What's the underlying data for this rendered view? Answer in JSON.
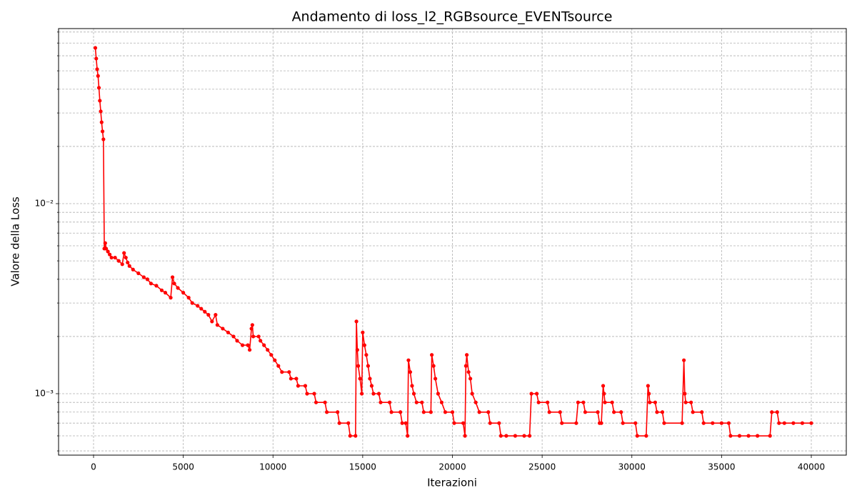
{
  "chart_data": {
    "type": "line",
    "title": "Andamento di loss_l2_RGBsource_EVENTsource",
    "xlabel": "Iterazioni",
    "ylabel": "Valore della Loss",
    "yscale": "log",
    "grid": true,
    "marker": true,
    "xlim": [
      -1950,
      41950
    ],
    "ylim": [
      0.000475,
      0.0834
    ],
    "xticks": [
      0,
      5000,
      10000,
      15000,
      20000,
      25000,
      30000,
      35000,
      40000
    ],
    "yticks": [
      {
        "value": 0.001,
        "label": "10⁻³"
      },
      {
        "value": 0.01,
        "label": "10⁻²"
      }
    ],
    "yminor_ticks": [
      0.0005,
      0.0006,
      0.0007,
      0.0008,
      0.0009,
      0.002,
      0.003,
      0.004,
      0.005,
      0.006,
      0.007,
      0.008,
      0.009,
      0.02,
      0.03,
      0.04,
      0.05,
      0.06,
      0.07,
      0.08
    ],
    "x": [
      100,
      150,
      200,
      250,
      300,
      350,
      400,
      450,
      500,
      550,
      600,
      650,
      700,
      800,
      900,
      1000,
      1200,
      1400,
      1600,
      1700,
      1800,
      1900,
      2000,
      2200,
      2500,
      2800,
      3000,
      3200,
      3500,
      3800,
      4000,
      4300,
      4400,
      4500,
      4700,
      5000,
      5300,
      5500,
      5800,
      6000,
      6200,
      6400,
      6600,
      6800,
      6900,
      7200,
      7500,
      7800,
      8000,
      8300,
      8600,
      8700,
      8800,
      8850,
      8900,
      9200,
      9300,
      9500,
      9700,
      9900,
      10100,
      10300,
      10500,
      10900,
      11000,
      11300,
      11400,
      11800,
      11900,
      12300,
      12400,
      12900,
      13000,
      13600,
      13700,
      14200,
      14300,
      14600,
      14650,
      14700,
      14750,
      14850,
      14950,
      15000,
      15100,
      15200,
      15300,
      15400,
      15500,
      15600,
      15900,
      16000,
      16500,
      16600,
      17100,
      17200,
      17400,
      17500,
      17550,
      17650,
      17750,
      17850,
      18000,
      18300,
      18400,
      18800,
      18850,
      18950,
      19050,
      19200,
      19400,
      19600,
      20000,
      20100,
      20600,
      20700,
      20750,
      20800,
      20900,
      21000,
      21100,
      21300,
      21500,
      22000,
      22100,
      22600,
      22700,
      23000,
      23500,
      24000,
      24300,
      24400,
      24700,
      24800,
      25300,
      25400,
      26000,
      26100,
      26900,
      27000,
      27300,
      27400,
      28100,
      28200,
      28300,
      28400,
      28450,
      28500,
      28900,
      29000,
      29400,
      29500,
      30200,
      30300,
      30800,
      30900,
      30950,
      31000,
      31300,
      31400,
      31700,
      31800,
      32800,
      32900,
      32950,
      33000,
      33300,
      33400,
      33900,
      34000,
      34500,
      35000,
      35400,
      35500,
      36000,
      36500,
      37000,
      37700,
      37800,
      38100,
      38200,
      38500,
      39000,
      39500,
      40000
    ],
    "series": [
      {
        "name": "loss_l2_RGBsource_EVENTsource",
        "color": "#ff0000",
        "values": [
          0.066,
          0.058,
          0.051,
          0.047,
          0.0407,
          0.0348,
          0.0306,
          0.0268,
          0.024,
          0.0218,
          0.0058,
          0.0062,
          0.0058,
          0.0056,
          0.0054,
          0.0052,
          0.0052,
          0.005,
          0.0048,
          0.0055,
          0.0052,
          0.0049,
          0.0047,
          0.0045,
          0.0043,
          0.0041,
          0.004,
          0.0038,
          0.0037,
          0.0035,
          0.0034,
          0.0032,
          0.0041,
          0.0038,
          0.0036,
          0.0034,
          0.0032,
          0.003,
          0.0029,
          0.0028,
          0.0027,
          0.0026,
          0.0024,
          0.0026,
          0.0023,
          0.0022,
          0.0021,
          0.002,
          0.0019,
          0.0018,
          0.0018,
          0.0017,
          0.0022,
          0.0023,
          0.002,
          0.002,
          0.0019,
          0.0018,
          0.0017,
          0.0016,
          0.0015,
          0.0014,
          0.0013,
          0.0013,
          0.0012,
          0.0012,
          0.0011,
          0.0011,
          0.001,
          0.001,
          0.0009,
          0.0009,
          0.0008,
          0.0008,
          0.0007,
          0.0007,
          0.0006,
          0.0006,
          0.0024,
          0.0017,
          0.0014,
          0.0012,
          0.001,
          0.0021,
          0.0018,
          0.0016,
          0.0014,
          0.0012,
          0.0011,
          0.001,
          0.001,
          0.0009,
          0.0009,
          0.0008,
          0.0008,
          0.0007,
          0.0007,
          0.0006,
          0.0015,
          0.0013,
          0.0011,
          0.001,
          0.0009,
          0.0009,
          0.0008,
          0.0008,
          0.0016,
          0.0014,
          0.0012,
          0.001,
          0.0009,
          0.0008,
          0.0008,
          0.0007,
          0.0007,
          0.0006,
          0.0014,
          0.0016,
          0.0013,
          0.0012,
          0.001,
          0.0009,
          0.0008,
          0.0008,
          0.0007,
          0.0007,
          0.0006,
          0.0006,
          0.0006,
          0.0006,
          0.0006,
          0.001,
          0.001,
          0.0009,
          0.0009,
          0.0008,
          0.0008,
          0.0007,
          0.0007,
          0.0009,
          0.0009,
          0.0008,
          0.0008,
          0.0007,
          0.0007,
          0.0011,
          0.001,
          0.0009,
          0.0009,
          0.0008,
          0.0008,
          0.0007,
          0.0007,
          0.0006,
          0.0006,
          0.0011,
          0.001,
          0.0009,
          0.0009,
          0.0008,
          0.0008,
          0.0007,
          0.0007,
          0.0015,
          0.001,
          0.0009,
          0.0009,
          0.0008,
          0.0008,
          0.0007,
          0.0007,
          0.0007,
          0.0007,
          0.0006,
          0.0006,
          0.0006,
          0.0006,
          0.0006,
          0.0008,
          0.0008,
          0.0007,
          0.0007,
          0.0007,
          0.0007,
          0.0007
        ]
      }
    ]
  }
}
